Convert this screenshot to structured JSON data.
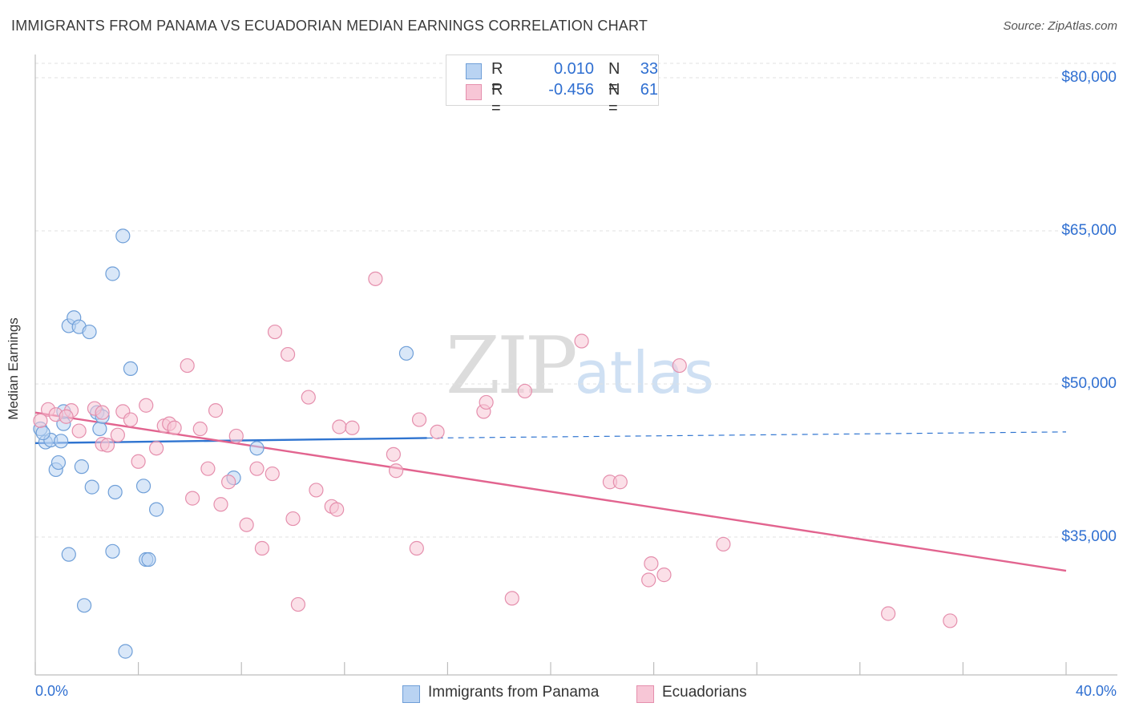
{
  "header": {
    "title": "IMMIGRANTS FROM PANAMA VS ECUADORIAN MEDIAN EARNINGS CORRELATION CHART",
    "source": "Source: ZipAtlas.com"
  },
  "watermark": {
    "zip": "ZIP",
    "atlas": "atlas"
  },
  "legend": {
    "rows": [
      {
        "r_label": "R =",
        "r_value": "0.010",
        "n_label": "N =",
        "n_value": "33"
      },
      {
        "r_label": "R =",
        "r_value": "-0.456",
        "n_label": "N =",
        "n_value": "61"
      }
    ],
    "bottom": [
      "Immigrants from Panama",
      "Ecuadorians"
    ]
  },
  "colors": {
    "blue_fill": "#b9d3f2",
    "blue_stroke": "#6f9fd8",
    "blue_line": "#2f74d0",
    "pink_fill": "#f7c6d6",
    "pink_stroke": "#e58fad",
    "pink_line": "#e2648f",
    "grid": "#e2e2e2",
    "tick_text": "#2f6fd1"
  },
  "chart_data": {
    "type": "scatter",
    "title": "IMMIGRANTS FROM PANAMA VS ECUADORIAN MEDIAN EARNINGS CORRELATION CHART",
    "xlabel": "",
    "ylabel": "Median Earnings",
    "xlim": [
      0,
      40
    ],
    "ylim": [
      21000,
      83000
    ],
    "x_tick_labels": [
      "0.0%",
      "40.0%"
    ],
    "y_ticks": [
      35000,
      50000,
      65000,
      80000
    ],
    "y_tick_labels": [
      "$35,000",
      "$50,000",
      "$65,000",
      "$80,000"
    ],
    "grid": true,
    "legend_position": "top-center",
    "series": [
      {
        "name": "Immigrants from Panama",
        "color": "blue",
        "points": [
          [
            0.2,
            45600
          ],
          [
            0.4,
            44300
          ],
          [
            0.6,
            44500
          ],
          [
            0.8,
            41600
          ],
          [
            0.9,
            42300
          ],
          [
            1.1,
            46100
          ],
          [
            1.1,
            47300
          ],
          [
            1.3,
            33300
          ],
          [
            1.3,
            55700
          ],
          [
            1.5,
            56500
          ],
          [
            1.7,
            55600
          ],
          [
            1.8,
            41900
          ],
          [
            1.9,
            28300
          ],
          [
            2.1,
            55100
          ],
          [
            2.2,
            39900
          ],
          [
            2.4,
            47200
          ],
          [
            2.5,
            45600
          ],
          [
            2.6,
            46800
          ],
          [
            3.0,
            33600
          ],
          [
            3.0,
            60800
          ],
          [
            3.1,
            39400
          ],
          [
            3.4,
            64500
          ],
          [
            3.5,
            23800
          ],
          [
            3.7,
            51500
          ],
          [
            4.2,
            40000
          ],
          [
            4.3,
            32800
          ],
          [
            4.4,
            32800
          ],
          [
            4.7,
            37700
          ],
          [
            7.7,
            40800
          ],
          [
            8.6,
            43700
          ],
          [
            14.4,
            53000
          ],
          [
            0.3,
            45200
          ],
          [
            1.0,
            44400
          ]
        ],
        "trend": {
          "x": [
            0,
            15.2
          ],
          "y": [
            44200,
            44700
          ],
          "dashed_to_x": 40,
          "dashed_to_y": 45300
        }
      },
      {
        "name": "Ecuadorians",
        "color": "pink",
        "points": [
          [
            0.5,
            47500
          ],
          [
            0.8,
            47000
          ],
          [
            1.4,
            47400
          ],
          [
            1.7,
            45400
          ],
          [
            2.3,
            47600
          ],
          [
            2.6,
            47200
          ],
          [
            2.6,
            44100
          ],
          [
            2.8,
            44000
          ],
          [
            3.2,
            45000
          ],
          [
            3.4,
            47300
          ],
          [
            3.7,
            46500
          ],
          [
            4.0,
            42400
          ],
          [
            4.3,
            47900
          ],
          [
            4.7,
            43700
          ],
          [
            5.0,
            45900
          ],
          [
            5.2,
            46100
          ],
          [
            5.4,
            45700
          ],
          [
            5.9,
            51800
          ],
          [
            6.1,
            38800
          ],
          [
            6.4,
            45600
          ],
          [
            6.7,
            41700
          ],
          [
            7.0,
            47400
          ],
          [
            7.2,
            38200
          ],
          [
            7.5,
            40400
          ],
          [
            7.8,
            44900
          ],
          [
            8.2,
            36200
          ],
          [
            8.6,
            41700
          ],
          [
            8.8,
            33900
          ],
          [
            9.2,
            41200
          ],
          [
            9.3,
            55100
          ],
          [
            9.8,
            52900
          ],
          [
            10.0,
            36800
          ],
          [
            10.2,
            28400
          ],
          [
            10.6,
            48700
          ],
          [
            10.9,
            39600
          ],
          [
            11.5,
            38000
          ],
          [
            11.7,
            37700
          ],
          [
            11.8,
            45800
          ],
          [
            12.3,
            45700
          ],
          [
            13.2,
            60300
          ],
          [
            13.9,
            43100
          ],
          [
            14.0,
            41500
          ],
          [
            14.8,
            33900
          ],
          [
            14.9,
            46500
          ],
          [
            15.6,
            45300
          ],
          [
            17.4,
            47300
          ],
          [
            17.5,
            48200
          ],
          [
            18.5,
            29000
          ],
          [
            19.0,
            49300
          ],
          [
            21.2,
            54200
          ],
          [
            22.3,
            40400
          ],
          [
            22.7,
            40400
          ],
          [
            23.8,
            30800
          ],
          [
            23.9,
            32400
          ],
          [
            24.4,
            31300
          ],
          [
            25.0,
            51800
          ],
          [
            26.7,
            34300
          ],
          [
            33.1,
            27500
          ],
          [
            35.5,
            26800
          ],
          [
            0.2,
            46400
          ],
          [
            1.2,
            46800
          ]
        ],
        "trend": {
          "x": [
            0,
            40
          ],
          "y": [
            47200,
            31700
          ]
        }
      }
    ]
  }
}
